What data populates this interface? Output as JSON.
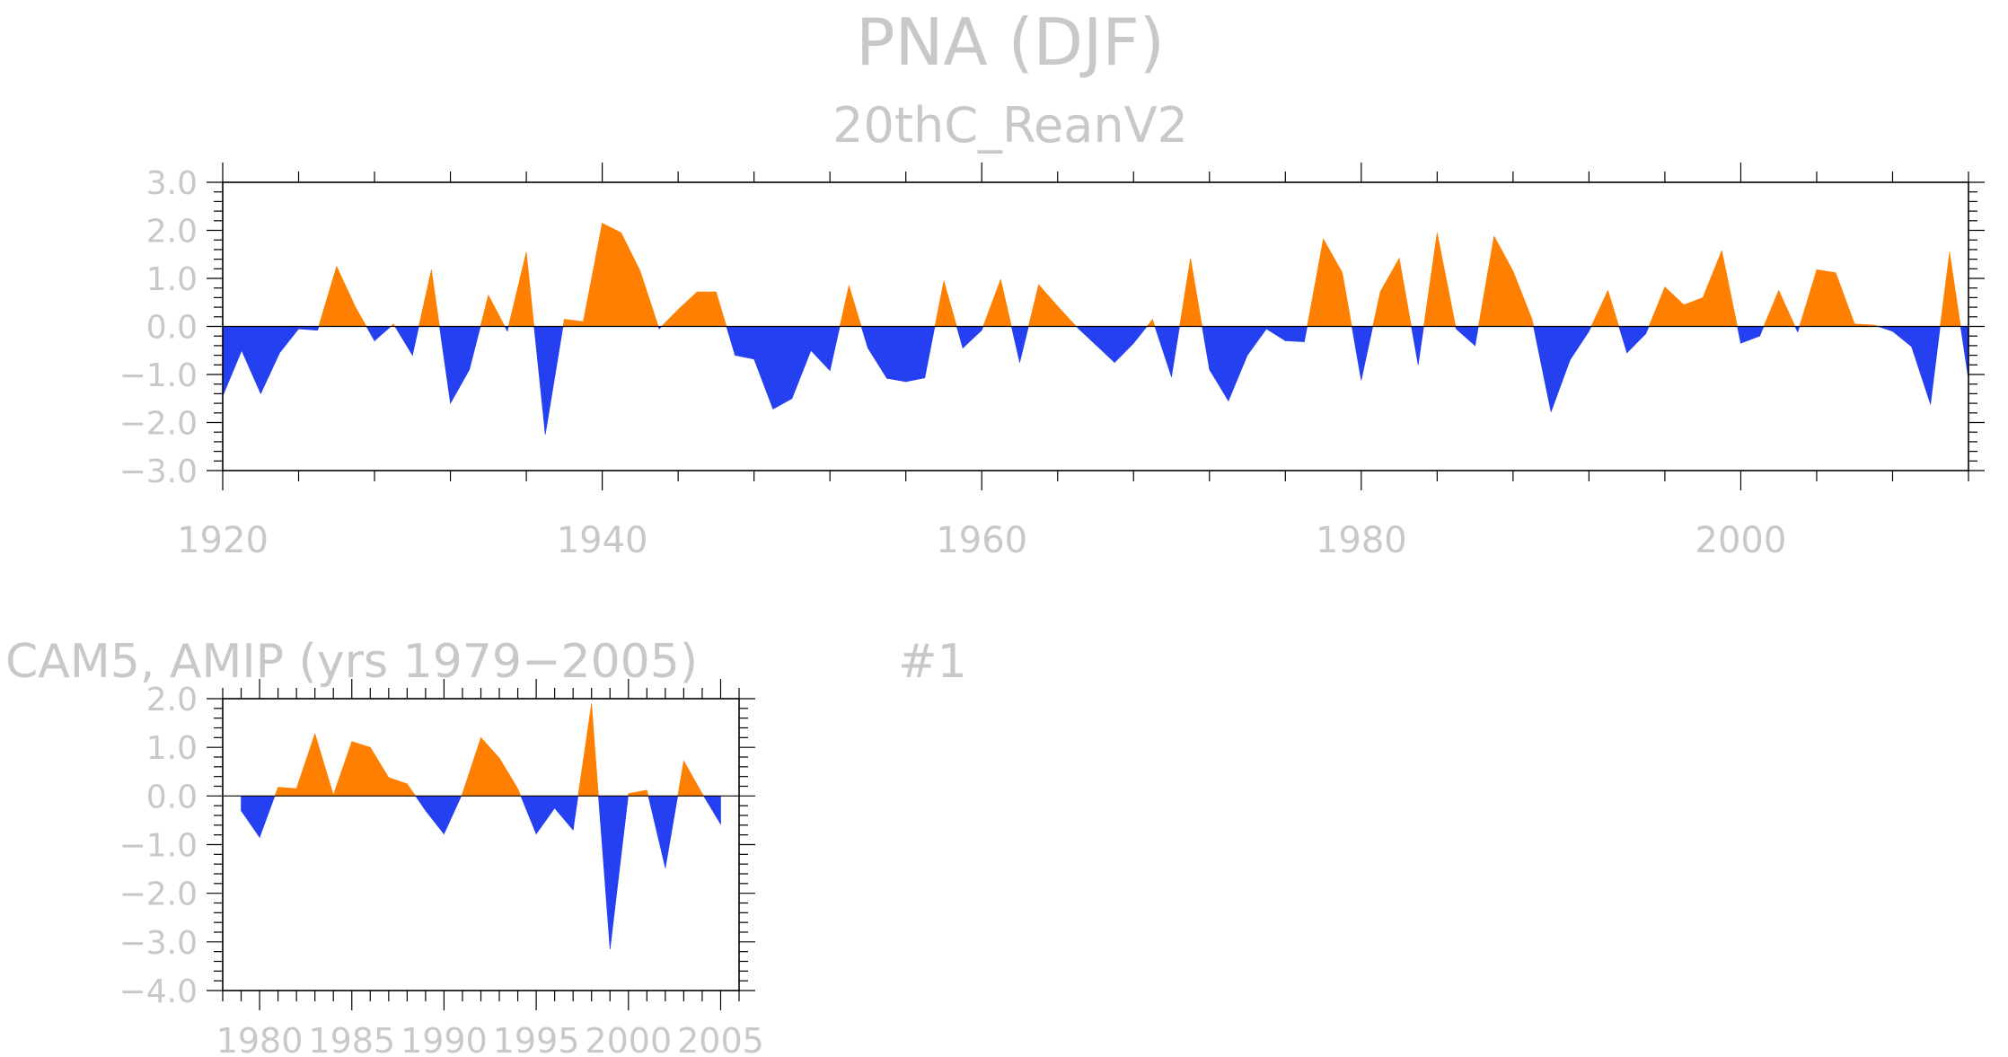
{
  "figure": {
    "title": "PNA (DJF)",
    "panel_label": "#1"
  },
  "colors": {
    "positive": "#ff8000",
    "negative": "#2440f0",
    "frame": "#000000",
    "text": "#c8c8c8"
  },
  "chart_data": [
    {
      "type": "area",
      "title": "20thC_ReanV2",
      "xlabel": "",
      "ylabel": "",
      "xlim": [
        1920,
        2012
      ],
      "ylim": [
        -3.0,
        3.0
      ],
      "x_ticks": [
        1920,
        1940,
        1960,
        1980,
        2000
      ],
      "y_ticks": [
        3.0,
        2.0,
        1.0,
        0.0,
        -1.0,
        -2.0,
        -3.0
      ],
      "y_tick_labels": [
        "3.0",
        "2.0",
        "1.0",
        "0.0",
        "−1.0",
        "−2.0",
        "−3.0"
      ],
      "baseline": 0,
      "grid": false,
      "legend": "none",
      "x": [
        1920,
        1921,
        1922,
        1923,
        1924,
        1925,
        1926,
        1927,
        1928,
        1929,
        1930,
        1931,
        1932,
        1933,
        1934,
        1935,
        1936,
        1937,
        1938,
        1939,
        1940,
        1941,
        1942,
        1943,
        1944,
        1945,
        1946,
        1947,
        1948,
        1949,
        1950,
        1951,
        1952,
        1953,
        1954,
        1955,
        1956,
        1957,
        1958,
        1959,
        1960,
        1961,
        1962,
        1963,
        1964,
        1965,
        1966,
        1967,
        1968,
        1969,
        1970,
        1971,
        1972,
        1973,
        1974,
        1975,
        1976,
        1977,
        1978,
        1979,
        1980,
        1981,
        1982,
        1983,
        1984,
        1985,
        1986,
        1987,
        1988,
        1989,
        1990,
        1991,
        1992,
        1993,
        1994,
        1995,
        1996,
        1997,
        1998,
        1999,
        2000,
        2001,
        2002,
        2003,
        2004,
        2005,
        2006,
        2007,
        2008,
        2009,
        2010,
        2011,
        2012
      ],
      "values": [
        -1.45,
        -0.5,
        -1.4,
        -0.55,
        -0.05,
        -0.08,
        1.25,
        0.4,
        -0.3,
        0.05,
        -0.6,
        1.18,
        -1.6,
        -0.9,
        0.65,
        -0.1,
        1.55,
        -2.25,
        0.15,
        0.1,
        2.15,
        1.95,
        1.15,
        -0.05,
        0.35,
        0.72,
        0.72,
        -0.6,
        -0.68,
        -1.72,
        -1.5,
        -0.5,
        -0.92,
        0.85,
        -0.45,
        -1.08,
        -1.15,
        -1.07,
        0.95,
        -0.45,
        -0.08,
        0.98,
        -0.75,
        0.87,
        0.42,
        -0.01,
        -0.38,
        -0.75,
        -0.35,
        0.15,
        -1.05,
        1.42,
        -0.9,
        -1.55,
        -0.6,
        -0.05,
        -0.3,
        -0.32,
        1.82,
        1.12,
        -1.12,
        0.72,
        1.42,
        -0.8,
        1.95,
        -0.05,
        -0.4,
        1.88,
        1.15,
        0.15,
        -1.78,
        -0.7,
        -0.1,
        0.75,
        -0.55,
        -0.15,
        0.82,
        0.45,
        0.6,
        1.58,
        -0.35,
        -0.2,
        0.75,
        -0.12,
        1.18,
        1.12,
        0.05,
        0.03,
        -0.1,
        -0.42,
        -1.62,
        1.55,
        -1.1
      ]
    },
    {
      "type": "area",
      "title": "CAM5, AMIP (yrs 1979−2005)",
      "xlabel": "",
      "ylabel": "",
      "xlim": [
        1978,
        2006
      ],
      "ylim": [
        -4.0,
        2.0
      ],
      "x_ticks": [
        1980,
        1985,
        1990,
        1995,
        2000,
        2005
      ],
      "x_tick_labels": [
        "1980",
        "1985",
        "1990",
        "1995",
        "2000",
        "2005"
      ],
      "y_ticks": [
        2.0,
        1.0,
        0.0,
        -1.0,
        -2.0,
        -3.0,
        -4.0
      ],
      "y_tick_labels": [
        "2.0",
        "1.0",
        "0.0",
        "−1.0",
        "−2.0",
        "−3.0",
        "−4.0"
      ],
      "baseline": 0,
      "grid": false,
      "legend": "none",
      "x": [
        1979,
        1980,
        1981,
        1982,
        1983,
        1984,
        1985,
        1986,
        1987,
        1988,
        1989,
        1990,
        1991,
        1992,
        1993,
        1994,
        1995,
        1996,
        1997,
        1998,
        1999,
        2000,
        2001,
        2002,
        2003,
        2004,
        2005
      ],
      "values": [
        -0.3,
        -0.85,
        0.18,
        0.15,
        1.28,
        0.02,
        1.12,
        1.0,
        0.38,
        0.25,
        -0.3,
        -0.78,
        0.05,
        1.2,
        0.78,
        0.15,
        -0.78,
        -0.25,
        -0.7,
        1.9,
        -3.15,
        0.05,
        0.12,
        -1.48,
        0.72,
        0.05,
        -0.58
      ]
    }
  ]
}
